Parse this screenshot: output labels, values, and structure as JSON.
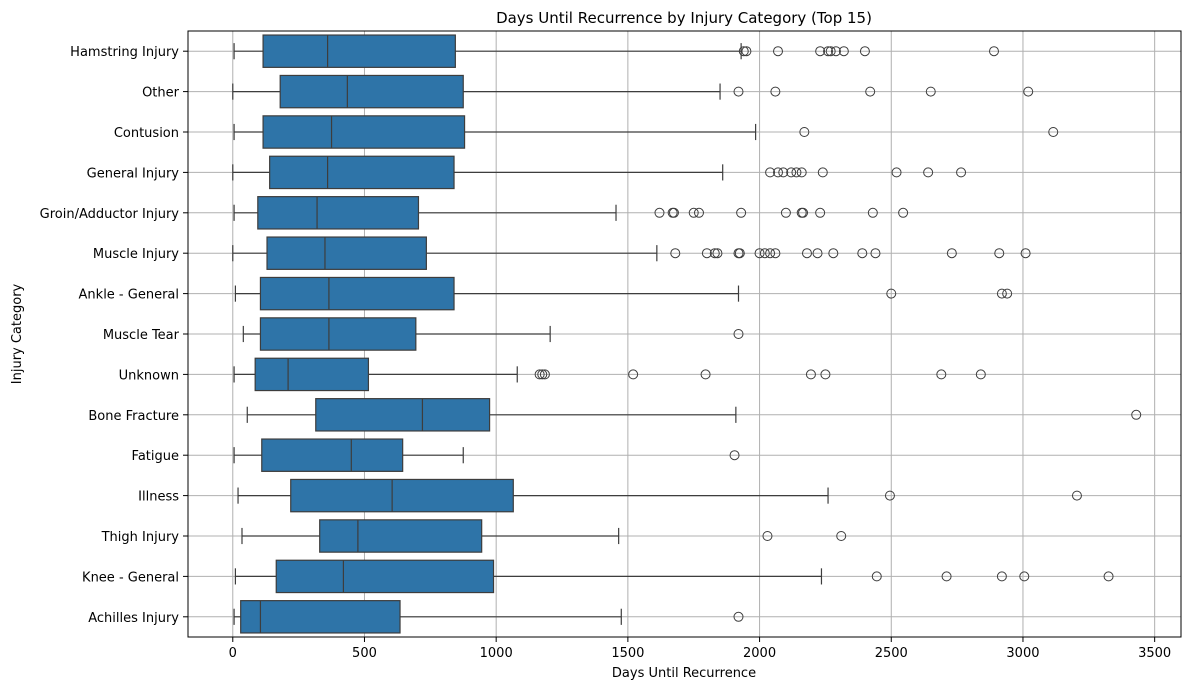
{
  "chart_data": {
    "type": "boxplot",
    "orientation": "horizontal",
    "title": "Days Until Recurrence by Injury Category (Top 15)",
    "xlabel": "Days Until Recurrence",
    "ylabel": "Injury Category",
    "xlim": [
      -170,
      3600
    ],
    "xticks": [
      0,
      500,
      1000,
      1500,
      2000,
      2500,
      3000,
      3500
    ],
    "grid": true,
    "box_color": "#2e74a8",
    "line_color": "#3d3d3d",
    "categories": [
      {
        "name": "Hamstring Injury",
        "whisker_low": 5,
        "q1": 115,
        "median": 360,
        "q3": 845,
        "whisker_high": 1930,
        "outliers": [
          1940,
          1950,
          2070,
          2230,
          2260,
          2270,
          2290,
          2320,
          2400,
          2890
        ]
      },
      {
        "name": "Other",
        "whisker_low": 0,
        "q1": 180,
        "median": 435,
        "q3": 875,
        "whisker_high": 1850,
        "outliers": [
          1920,
          2060,
          2420,
          2650,
          3020
        ]
      },
      {
        "name": "Contusion",
        "whisker_low": 5,
        "q1": 115,
        "median": 375,
        "q3": 880,
        "whisker_high": 1985,
        "outliers": [
          2170,
          3115
        ]
      },
      {
        "name": "General Injury",
        "whisker_low": 0,
        "q1": 140,
        "median": 360,
        "q3": 840,
        "whisker_high": 1860,
        "outliers": [
          2040,
          2070,
          2090,
          2120,
          2140,
          2160,
          2240,
          2520,
          2640,
          2765
        ]
      },
      {
        "name": "Groin/Adductor Injury",
        "whisker_low": 5,
        "q1": 95,
        "median": 320,
        "q3": 705,
        "whisker_high": 1455,
        "outliers": [
          1620,
          1670,
          1675,
          1750,
          1770,
          1930,
          2100,
          2160,
          2165,
          2230,
          2430,
          2545
        ]
      },
      {
        "name": "Muscle Injury",
        "whisker_low": 0,
        "q1": 130,
        "median": 350,
        "q3": 735,
        "whisker_high": 1610,
        "outliers": [
          1680,
          1800,
          1830,
          1840,
          1920,
          1925,
          2000,
          2020,
          2040,
          2060,
          2180,
          2220,
          2280,
          2390,
          2440,
          2730,
          2910,
          3010
        ]
      },
      {
        "name": "Ankle - General",
        "whisker_low": 10,
        "q1": 105,
        "median": 365,
        "q3": 840,
        "whisker_high": 1920,
        "outliers": [
          2500,
          2920,
          2940
        ]
      },
      {
        "name": "Muscle Tear",
        "whisker_low": 40,
        "q1": 105,
        "median": 365,
        "q3": 695,
        "whisker_high": 1205,
        "outliers": [
          1920
        ]
      },
      {
        "name": "Unknown",
        "whisker_low": 5,
        "q1": 85,
        "median": 210,
        "q3": 515,
        "whisker_high": 1080,
        "outliers": [
          1165,
          1175,
          1185,
          1520,
          1795,
          2195,
          2250,
          2690,
          2840
        ]
      },
      {
        "name": "Bone Fracture",
        "whisker_low": 55,
        "q1": 315,
        "median": 720,
        "q3": 975,
        "whisker_high": 1910,
        "outliers": [
          3430
        ]
      },
      {
        "name": "Fatigue",
        "whisker_low": 5,
        "q1": 110,
        "median": 450,
        "q3": 645,
        "whisker_high": 875,
        "outliers": [
          1905
        ]
      },
      {
        "name": "Illness",
        "whisker_low": 20,
        "q1": 220,
        "median": 605,
        "q3": 1065,
        "whisker_high": 2260,
        "outliers": [
          2495,
          3205
        ]
      },
      {
        "name": "Thigh Injury",
        "whisker_low": 35,
        "q1": 330,
        "median": 475,
        "q3": 945,
        "whisker_high": 1465,
        "outliers": [
          2030,
          2310
        ]
      },
      {
        "name": "Knee - General",
        "whisker_low": 10,
        "q1": 165,
        "median": 420,
        "q3": 990,
        "whisker_high": 2235,
        "outliers": [
          2445,
          2710,
          2920,
          3005,
          3325
        ]
      },
      {
        "name": "Achilles Injury",
        "whisker_low": 5,
        "q1": 30,
        "median": 105,
        "q3": 635,
        "whisker_high": 1475,
        "outliers": [
          1920
        ]
      }
    ]
  }
}
